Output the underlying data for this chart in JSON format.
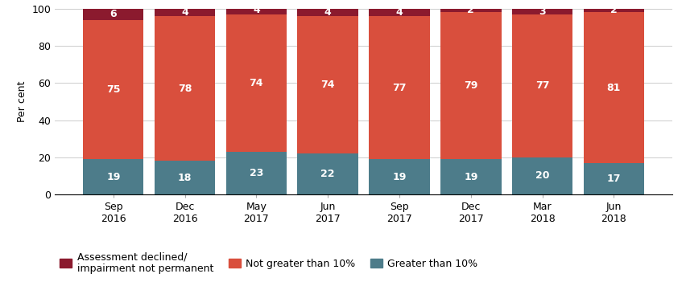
{
  "categories": [
    "Sep\n2016",
    "Dec\n2016",
    "May\n2017",
    "Jun\n2017",
    "Sep\n2017",
    "Dec\n2017",
    "Mar\n2018",
    "Jun\n2018"
  ],
  "greater_than_10": [
    19,
    18,
    23,
    22,
    19,
    19,
    20,
    17
  ],
  "not_greater_than_10": [
    75,
    78,
    74,
    74,
    77,
    79,
    77,
    81
  ],
  "assessment_declined": [
    6,
    4,
    4,
    4,
    4,
    2,
    3,
    2
  ],
  "color_greater": "#4d7c8a",
  "color_not_greater": "#d94f3d",
  "color_declined": "#8b1a2e",
  "ylabel": "Per cent",
  "ylim": [
    0,
    100
  ],
  "yticks": [
    0,
    20,
    40,
    60,
    80,
    100
  ],
  "legend_labels": [
    "Assessment declined/\nimpairment not permanent",
    "Not greater than 10%",
    "Greater than 10%"
  ],
  "bar_width": 0.85,
  "label_fontsize": 9,
  "axis_fontsize": 9,
  "legend_fontsize": 9,
  "figsize": [
    8.52,
    3.56
  ],
  "dpi": 100
}
